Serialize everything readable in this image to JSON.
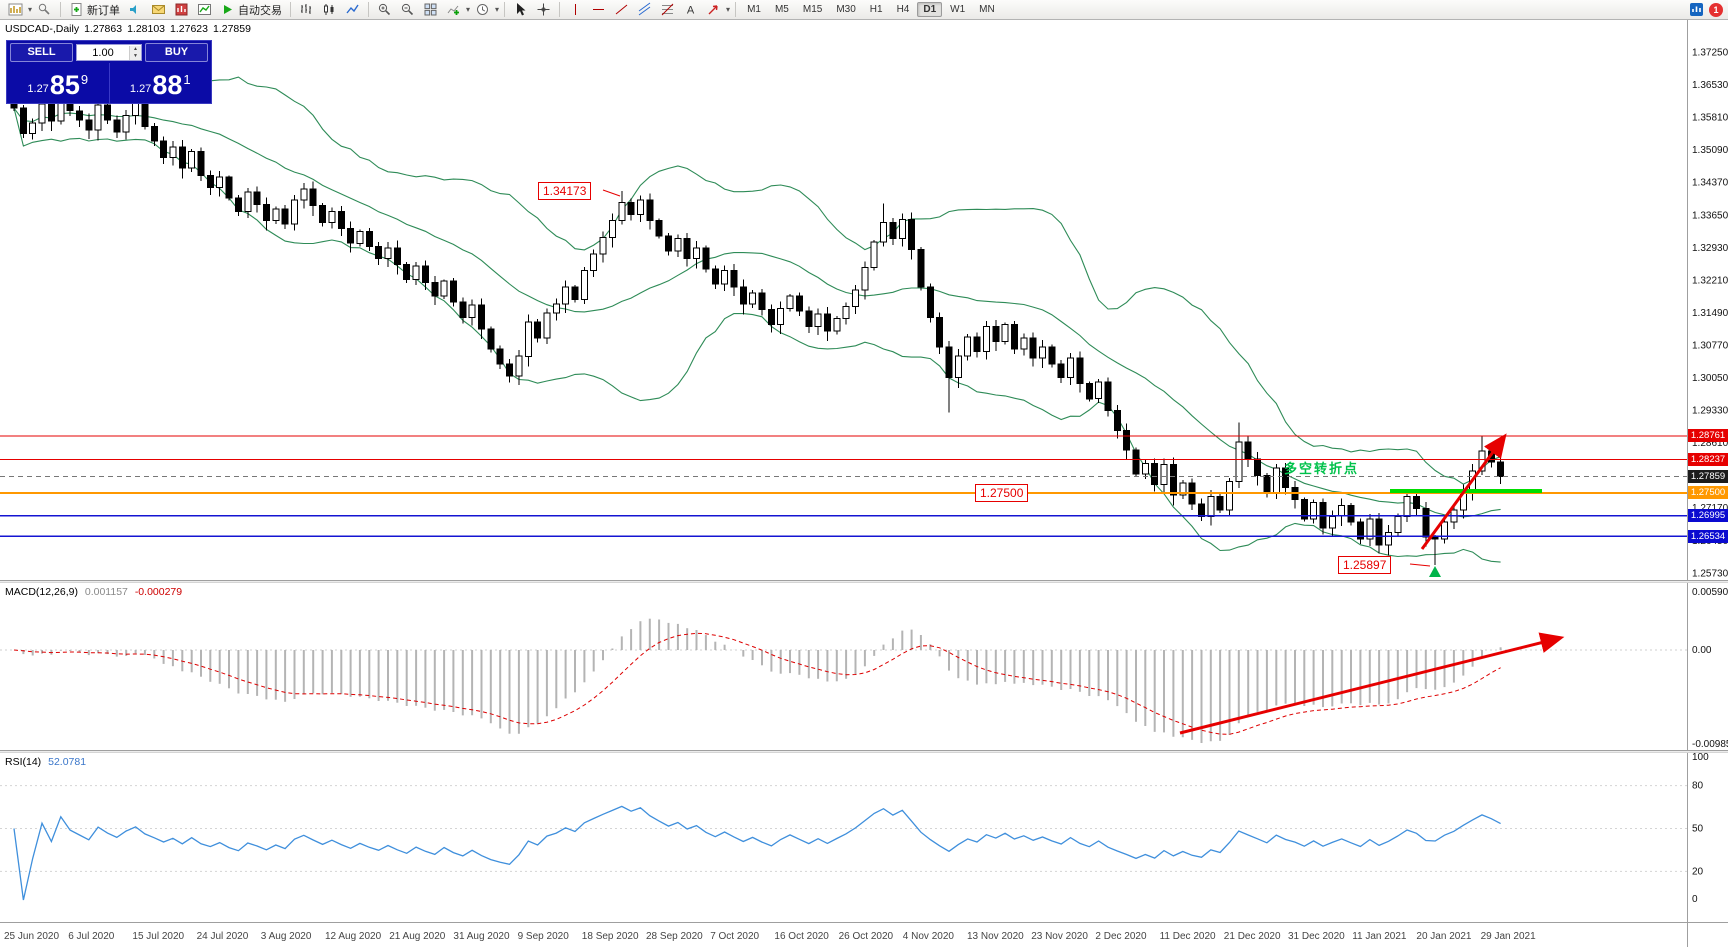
{
  "toolbar": {
    "new_order_label": "新订单",
    "auto_trading_label": "自动交易",
    "timeframes": [
      "M1",
      "M5",
      "M15",
      "M30",
      "H1",
      "H4",
      "D1",
      "W1",
      "MN"
    ]
  },
  "window": {
    "notif_count": "1"
  },
  "symbol_header": {
    "title": "USDCAD-,Daily",
    "o": "1.27863",
    "h": "1.28103",
    "l": "1.27623",
    "c": "1.27859"
  },
  "one_click": {
    "sell": "SELL",
    "buy": "BUY",
    "volume": "1.00",
    "bid_prefix": "1.27",
    "bid_big": "85",
    "bid_sup": "9",
    "ask_prefix": "1.27",
    "ask_big": "88",
    "ask_sup": "1"
  },
  "price_axis": {
    "labels": [
      "1.37250",
      "1.36530",
      "1.35810",
      "1.35090",
      "1.34370",
      "1.33650",
      "1.32930",
      "1.32210",
      "1.31490",
      "1.30770",
      "1.30050",
      "1.29330",
      "1.28610",
      "1.27890",
      "1.27170",
      "1.26450",
      "1.25730"
    ]
  },
  "badges": [
    {
      "text": "1.28761",
      "bg": "#e60000",
      "fg": "#ffffff",
      "price": 1.28761
    },
    {
      "text": "1.28237",
      "bg": "#e60000",
      "fg": "#ffffff",
      "price": 1.28237
    },
    {
      "text": "1.27859",
      "bg": "#1c1c1c",
      "fg": "#ffffff",
      "price": 1.27859
    },
    {
      "text": "1.27500",
      "bg": "#ff9800",
      "fg": "#ffffff",
      "price": 1.275
    },
    {
      "text": "1.26995",
      "bg": "#0a0ad0",
      "fg": "#ffffff",
      "price": 1.26995
    },
    {
      "text": "1.26534",
      "bg": "#0a0ad0",
      "fg": "#ffffff",
      "price": 1.26534
    }
  ],
  "hlines": [
    {
      "price": 1.28761,
      "color": "#e60000",
      "style": "solid",
      "width": 1
    },
    {
      "price": 1.28237,
      "color": "#e60000",
      "style": "solid",
      "width": 1
    },
    {
      "price": 1.27859,
      "color": "#777777",
      "style": "dash",
      "width": 1
    },
    {
      "price": 1.275,
      "color": "#ff9800",
      "style": "solid",
      "width": 2
    },
    {
      "price": 1.26995,
      "color": "#1414d2",
      "style": "solid",
      "width": 1.5
    },
    {
      "price": 1.26534,
      "color": "#1414d2",
      "style": "solid",
      "width": 1.5
    }
  ],
  "annotations": {
    "peak_label": "1.34173",
    "mid_label": "1.27500",
    "low_label": "1.25897",
    "cn_text": "多空转折点"
  },
  "macd": {
    "label": "MACD(12,26,9)",
    "value_main": "0.001157",
    "value_signal": "-0.000279",
    "axis": [
      "0.005908",
      "0.00",
      "-0.009851"
    ]
  },
  "rsi": {
    "label": "RSI(14)",
    "value": "52.0781",
    "axis": [
      "100",
      "80",
      "50",
      "20",
      "0"
    ]
  },
  "date_axis": [
    "25 Jun 2020",
    "6 Jul 2020",
    "15 Jul 2020",
    "24 Jul 2020",
    "3 Aug 2020",
    "12 Aug 2020",
    "21 Aug 2020",
    "31 Aug 2020",
    "9 Sep 2020",
    "18 Sep 2020",
    "28 Sep 2020",
    "7 Oct 2020",
    "16 Oct 2020",
    "26 Oct 2020",
    "4 Nov 2020",
    "13 Nov 2020",
    "23 Nov 2020",
    "2 Dec 2020",
    "11 Dec 2020",
    "21 Dec 2020",
    "31 Dec 2020",
    "11 Jan 2021",
    "20 Jan 2021",
    "29 Jan 2021"
  ],
  "chart_data": {
    "type": "candlestick",
    "symbol": "USDCAD",
    "timeframe": "Daily",
    "ylim": [
      1.2573,
      1.3725
    ],
    "grid_step": 0.0072,
    "closes": [
      1.3601,
      1.3545,
      1.3568,
      1.361,
      1.3572,
      1.3638,
      1.3595,
      1.3575,
      1.3552,
      1.3608,
      1.3575,
      1.3548,
      1.3585,
      1.3612,
      1.356,
      1.3528,
      1.3492,
      1.3515,
      1.3468,
      1.3505,
      1.3452,
      1.3425,
      1.3448,
      1.3402,
      1.3372,
      1.3415,
      1.3388,
      1.3352,
      1.3378,
      1.3345,
      1.3398,
      1.3422,
      1.3385,
      1.3348,
      1.3372,
      1.3335,
      1.3302,
      1.3328,
      1.3295,
      1.3268,
      1.3292,
      1.3255,
      1.3222,
      1.3252,
      1.3215,
      1.3185,
      1.3218,
      1.3172,
      1.3138,
      1.3165,
      1.3112,
      1.3068,
      1.3035,
      1.3008,
      1.3052,
      1.3128,
      1.3092,
      1.3148,
      1.3168,
      1.3205,
      1.3178,
      1.3242,
      1.3278,
      1.3315,
      1.3352,
      1.3392,
      1.3365,
      1.3398,
      1.3352,
      1.3318,
      1.3285,
      1.3312,
      1.3268,
      1.3292,
      1.3245,
      1.3212,
      1.3242,
      1.3205,
      1.3168,
      1.3192,
      1.3155,
      1.3122,
      1.3158,
      1.3185,
      1.3152,
      1.3118,
      1.3145,
      1.3108,
      1.3135,
      1.3162,
      1.3198,
      1.3248,
      1.3305,
      1.3348,
      1.3312,
      1.3355,
      1.3288,
      1.3205,
      1.3138,
      1.3072,
      1.3005,
      1.3052,
      1.3095,
      1.3062,
      1.3118,
      1.3085,
      1.3122,
      1.3068,
      1.3092,
      1.3048,
      1.3072,
      1.3035,
      1.3005,
      1.3048,
      1.2992,
      1.2958,
      1.2995,
      1.2932,
      1.2888,
      1.2845,
      1.2792,
      1.2815,
      1.2768,
      1.2812,
      1.2745,
      1.2772,
      1.2725,
      1.2698,
      1.2742,
      1.2712,
      1.2775,
      1.2862,
      1.2825,
      1.2788,
      1.2748,
      1.2805,
      1.2762,
      1.2735,
      1.2692,
      1.2728,
      1.2672,
      1.2698,
      1.2722,
      1.2685,
      1.2648,
      1.2692,
      1.2635,
      1.2662,
      1.2698,
      1.2742,
      1.2715,
      1.2652,
      1.2648,
      1.2685,
      1.2712,
      1.2755,
      1.2798,
      1.2842,
      1.2818,
      1.2786
    ],
    "special_highs": {
      "65": 1.34173,
      "67": 1.3408,
      "93": 1.339,
      "131": 1.2905,
      "157": 1.28761,
      "159": 1.2852
    },
    "special_lows": {
      "53": 1.2994,
      "100": 1.2928,
      "127": 1.2688,
      "152": 1.25897
    },
    "bollinger": {
      "period": 20,
      "deviation": 2
    },
    "macd_params": [
      12,
      26,
      9
    ],
    "rsi_period": 14,
    "horizontal_levels": [
      1.28761,
      1.28237,
      1.27859,
      1.275,
      1.26995,
      1.26534
    ]
  }
}
